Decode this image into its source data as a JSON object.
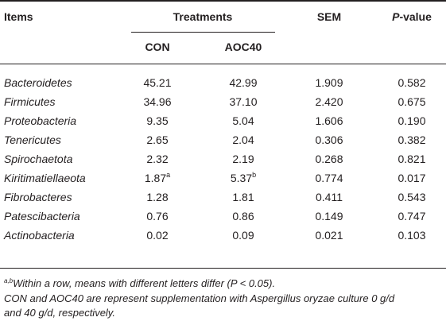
{
  "table": {
    "headers": {
      "items": "Items",
      "treatments": "Treatments",
      "sem": "SEM",
      "pvalue_p": "P",
      "pvalue_rest": "-value",
      "con": "CON",
      "aoc40": "AOC40"
    },
    "rows": [
      {
        "item": "Bacteroidetes",
        "con": "45.21",
        "con_sup": "",
        "aoc40": "42.99",
        "aoc40_sup": "",
        "sem": "1.909",
        "p": "0.582"
      },
      {
        "item": "Firmicutes",
        "con": "34.96",
        "con_sup": "",
        "aoc40": "37.10",
        "aoc40_sup": "",
        "sem": "2.420",
        "p": "0.675"
      },
      {
        "item": "Proteobacteria",
        "con": "9.35",
        "con_sup": "",
        "aoc40": "5.04",
        "aoc40_sup": "",
        "sem": "1.606",
        "p": "0.190"
      },
      {
        "item": "Tenericutes",
        "con": "2.65",
        "con_sup": "",
        "aoc40": "2.04",
        "aoc40_sup": "",
        "sem": "0.306",
        "p": "0.382"
      },
      {
        "item": "Spirochaetota",
        "con": "2.32",
        "con_sup": "",
        "aoc40": "2.19",
        "aoc40_sup": "",
        "sem": "0.268",
        "p": "0.821"
      },
      {
        "item": "Kiritimatiellaeota",
        "con": "1.87",
        "con_sup": "a",
        "aoc40": "5.37",
        "aoc40_sup": "b",
        "sem": "0.774",
        "p": "0.017"
      },
      {
        "item": "Fibrobacteres",
        "con": "1.28",
        "con_sup": "",
        "aoc40": "1.81",
        "aoc40_sup": "",
        "sem": "0.411",
        "p": "0.543"
      },
      {
        "item": "Patescibacteria",
        "con": "0.76",
        "con_sup": "",
        "aoc40": "0.86",
        "aoc40_sup": "",
        "sem": "0.149",
        "p": "0.747"
      },
      {
        "item": "Actinobacteria",
        "con": "0.02",
        "con_sup": "",
        "aoc40": "0.09",
        "aoc40_sup": "",
        "sem": "0.021",
        "p": "0.103"
      }
    ]
  },
  "footnotes": {
    "note1_sup": "a,b",
    "note1": "Within a row, means with different letters differ (P < 0.05).",
    "note2_line1": "CON and AOC40 are represent supplementation with Aspergillus oryzae culture 0 g/d",
    "note2_line2": "and 40 g/d, respectively."
  }
}
